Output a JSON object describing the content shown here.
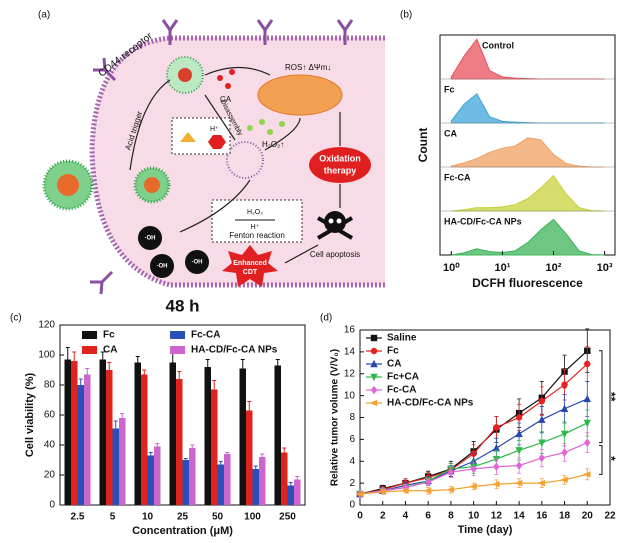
{
  "diagram": {
    "label": "(a)",
    "receptor": "CD44 receptor",
    "acid": "Acid trigger",
    "disassembly": "Disassembly",
    "ca": "CA",
    "ros": "ROS↑ ΔΨm↓",
    "h2o2_up": "H₂O₂↑",
    "hplus": "H⁺",
    "oxidation": [
      "Oxidation",
      "therapy"
    ],
    "fenton_top": "H₂O₂",
    "fenton_h": "H⁺",
    "fenton": "Fenton reaction",
    "oh": [
      "·OH",
      "·OH",
      "·OH"
    ],
    "cdt": [
      "Enhanced",
      "CDT"
    ],
    "apoptosis": "Cell apoptosis"
  },
  "chart_data": [
    {
      "type": "ridge",
      "label": "(b)",
      "xlabel": "DCFH fluorescence",
      "ylabel": "Count",
      "log_x": true,
      "x": [
        1,
        1.78,
        3.16,
        5.62,
        10,
        17.8,
        31.6,
        56.2,
        100,
        178,
        316,
        562,
        1000
      ],
      "xlim": [
        0.6,
        1600
      ],
      "xticks": [
        {
          "value": 1,
          "label": "10⁰"
        },
        {
          "value": 10,
          "label": "10¹"
        },
        {
          "value": 100,
          "label": "10²"
        },
        {
          "value": 1000,
          "label": "10³"
        }
      ],
      "series": [
        {
          "name": "Control",
          "color": "#e8505b",
          "values": [
            0.05,
            0.55,
            0.95,
            0.2,
            0.05,
            0.02,
            0.01,
            0,
            0,
            0,
            0,
            0,
            0
          ]
        },
        {
          "name": "Fc",
          "color": "#3da5d9",
          "values": [
            0.05,
            0.45,
            0.7,
            0.15,
            0.04,
            0.02,
            0.01,
            0,
            0,
            0,
            0,
            0,
            0
          ]
        },
        {
          "name": "CA",
          "color": "#f0a060",
          "values": [
            0.02,
            0.1,
            0.2,
            0.35,
            0.45,
            0.5,
            0.7,
            0.65,
            0.3,
            0.08,
            0.02,
            0,
            0
          ]
        },
        {
          "name": "Fc-CA",
          "color": "#c8d23c",
          "values": [
            0,
            0.03,
            0.08,
            0.08,
            0.1,
            0.15,
            0.3,
            0.55,
            0.85,
            0.4,
            0.08,
            0.01,
            0
          ]
        },
        {
          "name": "HA-CD/Fc-CA NPs",
          "color": "#3cb45a",
          "values": [
            0,
            0.05,
            0.15,
            0.08,
            0.06,
            0.1,
            0.3,
            0.6,
            0.85,
            0.5,
            0.1,
            0.01,
            0
          ]
        }
      ]
    },
    {
      "type": "bar",
      "label": "(c)",
      "title": "48 h",
      "xlabel": "Concentration (μM)",
      "ylabel": "Cell viability (%)",
      "categories": [
        "2.5",
        "5",
        "10",
        "25",
        "50",
        "100",
        "250"
      ],
      "ylim": [
        0,
        120
      ],
      "yticks": [
        0,
        20,
        40,
        60,
        80,
        100,
        120
      ],
      "series": [
        {
          "name": "Fc",
          "color": "#111111",
          "values": [
            97,
            97,
            95,
            95,
            92,
            91,
            93
          ],
          "errors": [
            8,
            5,
            4,
            6,
            5,
            6,
            4
          ]
        },
        {
          "name": "CA",
          "color": "#e0231c",
          "values": [
            96,
            90,
            87,
            84,
            77,
            63,
            35
          ],
          "errors": [
            6,
            5,
            3,
            5,
            6,
            6,
            3
          ]
        },
        {
          "name": "Fc-CA",
          "color": "#2a4fb8",
          "values": [
            80,
            51,
            33,
            30,
            27,
            24,
            13
          ],
          "errors": [
            4,
            5,
            2,
            1,
            2,
            2,
            2
          ]
        },
        {
          "name": "HA-CD/Fc-CA NPs",
          "color": "#cc66cc",
          "values": [
            87,
            58,
            39,
            38,
            34,
            32,
            17
          ],
          "errors": [
            4,
            3,
            2,
            2,
            1,
            2,
            2
          ]
        }
      ]
    },
    {
      "type": "line",
      "label": "(d)",
      "xlabel": "Time (day)",
      "ylabel": "Relative tumor volume (V/V₀)",
      "x": [
        0,
        2,
        4,
        6,
        8,
        10,
        12,
        14,
        16,
        18,
        20
      ],
      "xlim": [
        0,
        22
      ],
      "xticks": [
        0,
        2,
        4,
        6,
        8,
        10,
        12,
        14,
        16,
        18,
        20,
        22
      ],
      "ylim": [
        0,
        16
      ],
      "yticks": [
        0,
        2,
        4,
        6,
        8,
        10,
        12,
        14,
        16
      ],
      "annotations": [
        "**",
        "*"
      ],
      "series": [
        {
          "name": "Saline",
          "color": "#111111",
          "marker": "square",
          "values": [
            1,
            1.5,
            2,
            2.6,
            3.3,
            4.9,
            6.9,
            8.4,
            9.8,
            12.2,
            14.1
          ],
          "errors": [
            0,
            0.3,
            0.4,
            0.5,
            0.7,
            0.9,
            1.2,
            1.3,
            1.5,
            1.5,
            2
          ]
        },
        {
          "name": "Fc",
          "color": "#e8201e",
          "marker": "circle",
          "values": [
            1,
            1.4,
            2,
            2.5,
            3.2,
            4.7,
            7.1,
            8,
            9.5,
            11,
            12.9
          ],
          "errors": [
            0,
            0.3,
            0.4,
            0.5,
            0.6,
            0.8,
            1,
            1.2,
            1.3,
            1.4,
            1.6
          ]
        },
        {
          "name": "CA",
          "color": "#2747b0",
          "marker": "triangle",
          "values": [
            1,
            1.3,
            1.8,
            2.2,
            3.1,
            4,
            5.2,
            6.5,
            7.8,
            8.8,
            9.7
          ],
          "errors": [
            0,
            0.2,
            0.3,
            0.4,
            0.5,
            0.7,
            0.9,
            1,
            1.2,
            1.3,
            1.6
          ]
        },
        {
          "name": "Fc+CA",
          "color": "#2db84a",
          "marker": "down",
          "values": [
            1,
            1.3,
            1.6,
            2.2,
            3.3,
            3.5,
            4.2,
            5,
            5.7,
            6.5,
            7.5
          ],
          "errors": [
            0,
            0.2,
            0.3,
            0.3,
            0.5,
            0.6,
            0.8,
            0.9,
            1,
            1.1,
            1.2
          ]
        },
        {
          "name": "Fc-CA",
          "color": "#e066d6",
          "marker": "diamond",
          "values": [
            1,
            1.3,
            1.6,
            2.1,
            3,
            3.3,
            3.5,
            3.6,
            4.3,
            4.8,
            5.7
          ],
          "errors": [
            0,
            0.2,
            0.3,
            0.3,
            0.5,
            0.6,
            0.7,
            0.7,
            0.8,
            0.8,
            0.9
          ]
        },
        {
          "name": "HA-CD/Fc-CA NPs",
          "color": "#f5a030",
          "marker": "left",
          "values": [
            1,
            1.2,
            1.3,
            1.3,
            1.4,
            1.7,
            1.9,
            2,
            2,
            2.3,
            2.8
          ],
          "errors": [
            0,
            0.2,
            0.2,
            0.3,
            0.3,
            0.3,
            0.4,
            0.4,
            0.4,
            0.4,
            0.5
          ]
        }
      ]
    }
  ]
}
